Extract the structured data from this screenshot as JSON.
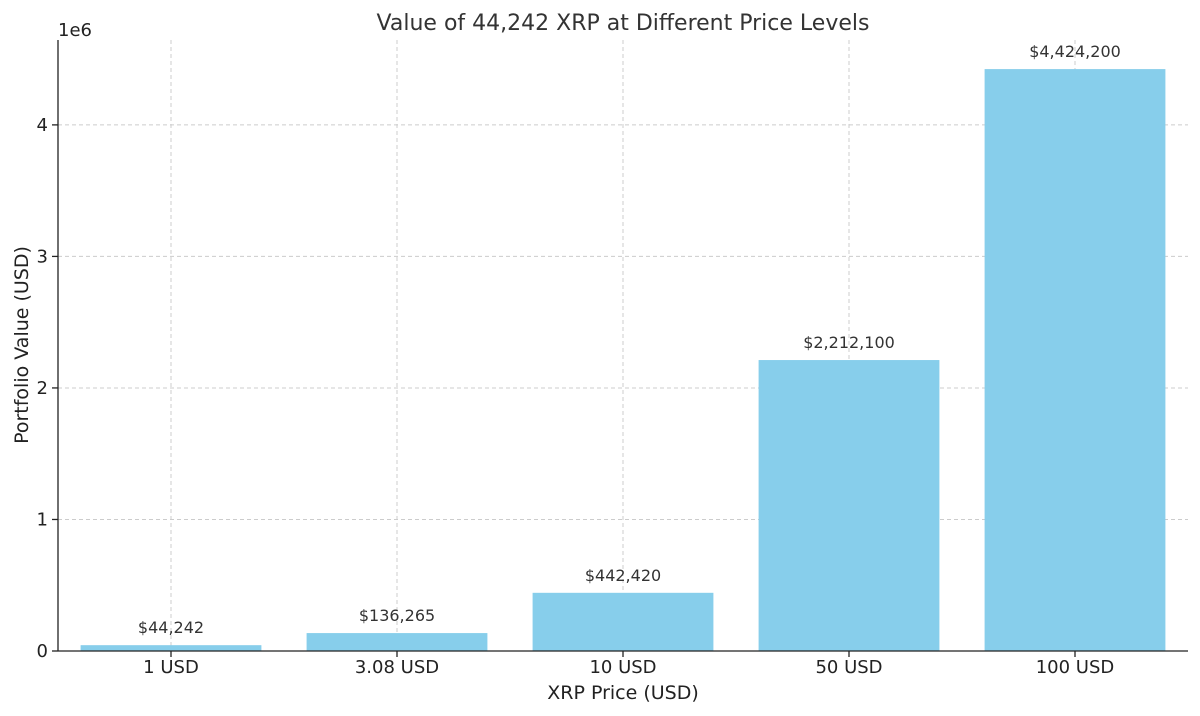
{
  "chart_data": {
    "type": "bar",
    "title": "Value of 44,242 XRP at Different Price Levels",
    "xlabel": "XRP Price (USD)",
    "ylabel": "Portfolio Value (USD)",
    "scale_label": "1e6",
    "categories": [
      "1 USD",
      "3.08 USD",
      "10 USD",
      "50 USD",
      "100 USD"
    ],
    "values": [
      44242,
      136265,
      442420,
      2212100,
      4424200
    ],
    "value_labels": [
      "$44,242",
      "$136,265",
      "$442,420",
      "$2,212,100",
      "$4,424,200"
    ],
    "ylim": [
      0,
      4645410
    ],
    "yticks": [
      0,
      1000000,
      2000000,
      3000000,
      4000000
    ],
    "ytick_labels": [
      "0",
      "1",
      "2",
      "3",
      "4"
    ],
    "grid": true,
    "bar_color": "#87CEEB"
  }
}
